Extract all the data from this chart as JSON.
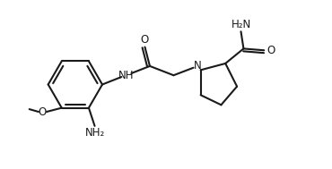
{
  "bg_color": "#ffffff",
  "bond_color": "#1a1a1a",
  "text_color": "#1a1a1a",
  "line_width": 1.5,
  "font_size": 8.5,
  "fig_width": 3.7,
  "fig_height": 1.89,
  "xlim": [
    0,
    10
  ],
  "ylim": [
    0,
    5.1
  ]
}
